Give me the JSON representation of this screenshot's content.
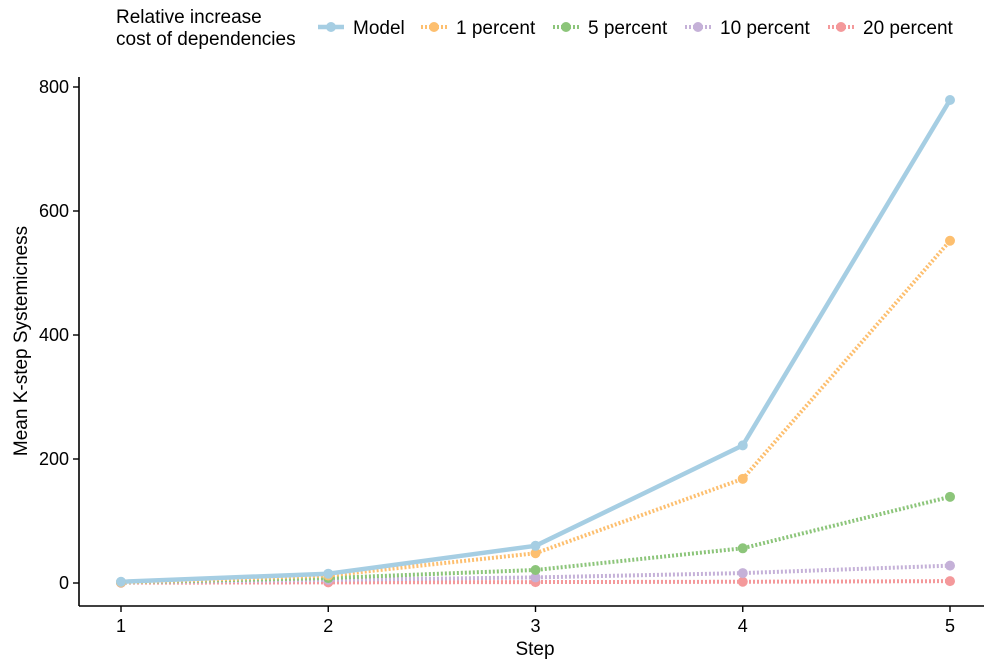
{
  "chart_data": {
    "type": "line",
    "title": "",
    "xlabel": "Step",
    "ylabel": "Mean K-step Systemicness",
    "x": [
      1,
      2,
      3,
      4,
      5
    ],
    "xlim": [
      1,
      5
    ],
    "ylim": [
      0,
      800
    ],
    "xticks": [
      "1",
      "2",
      "3",
      "4",
      "5"
    ],
    "yticks": [
      "0",
      "200",
      "400",
      "600",
      "800"
    ],
    "grid": false,
    "legend": {
      "title_lines": [
        "Relative increase",
        "cost of dependencies"
      ],
      "position": "top"
    },
    "series": [
      {
        "name": "Model",
        "values": [
          2,
          15,
          60,
          222,
          779
        ],
        "color": "#a6cee3",
        "dash": "solid"
      },
      {
        "name": "1 percent",
        "values": [
          1,
          12,
          48,
          168,
          552
        ],
        "color": "#fdbf6f",
        "dash": "dotted"
      },
      {
        "name": "5 percent",
        "values": [
          1,
          8,
          21,
          56,
          139
        ],
        "color": "#8cc57a",
        "dash": "dotted"
      },
      {
        "name": "10 percent",
        "values": [
          1,
          5,
          9,
          16,
          28
        ],
        "color": "#c5b1d8",
        "dash": "dotted"
      },
      {
        "name": "20 percent",
        "values": [
          0.5,
          1,
          1.5,
          2,
          3
        ],
        "color": "#f4999b",
        "dash": "dotted"
      }
    ]
  }
}
